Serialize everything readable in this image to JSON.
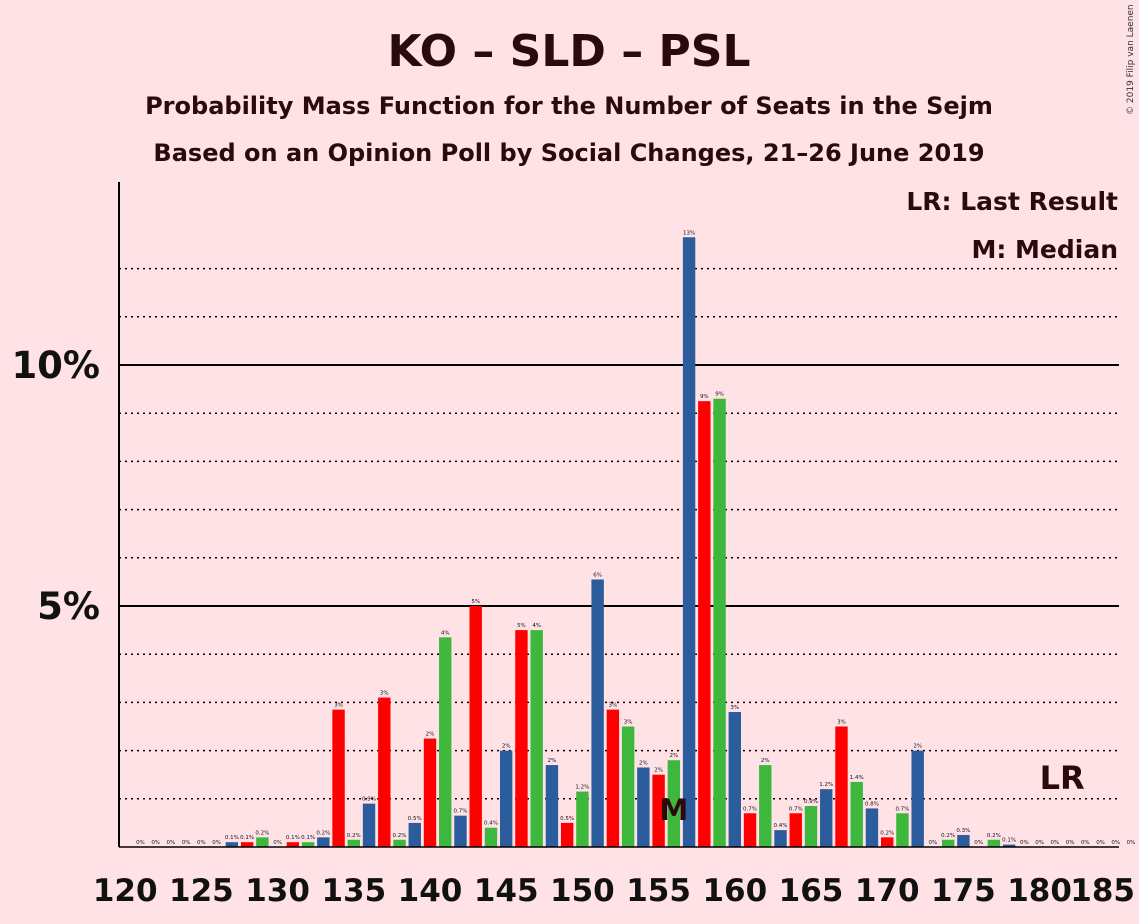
{
  "chart_data": {
    "type": "bar",
    "title": "KO – SLD – PSL",
    "subtitle": "Probability Mass Function for the Number of Seats in the Sejm",
    "subtitle2": "Based on an Opinion Poll by Social Changes, 21–26 June 2019",
    "copyright": "© 2019 Filip van Laenen",
    "legend": {
      "lr": "LR: Last Result",
      "m": "M: Median"
    },
    "marker_labels": {
      "median": "M",
      "last_result": "LR"
    },
    "median_seat": 156,
    "last_result_seat": 182,
    "xlim": [
      120,
      185
    ],
    "ylim": [
      0,
      13.7
    ],
    "x_ticks": [
      "120",
      "125",
      "130",
      "135",
      "140",
      "145",
      "150",
      "155",
      "160",
      "165",
      "170",
      "175",
      "180",
      "185"
    ],
    "y_ticks": [
      {
        "value": 5,
        "label": "5%"
      },
      {
        "value": 10,
        "label": "10%"
      }
    ],
    "grid": "dotted every 1%, solid at 5% and 10%",
    "colors": {
      "blue": "#2B5C9B",
      "red": "#FF0000",
      "green": "#3DB83D",
      "background": "#FFE2E6",
      "text": "#2a0a0a"
    },
    "series": [
      {
        "x": 121,
        "value": 0.0,
        "label": "0%",
        "color": "blue"
      },
      {
        "x": 122,
        "value": 0.0,
        "label": "0%",
        "color": "red"
      },
      {
        "x": 123,
        "value": 0.0,
        "label": "0%",
        "color": "green"
      },
      {
        "x": 124,
        "value": 0.0,
        "label": "0%",
        "color": "blue"
      },
      {
        "x": 125,
        "value": 0.0,
        "label": "0%",
        "color": "red"
      },
      {
        "x": 126,
        "value": 0.0,
        "label": "0%",
        "color": "green"
      },
      {
        "x": 127,
        "value": 0.1,
        "label": "0.1%",
        "color": "blue"
      },
      {
        "x": 128,
        "value": 0.1,
        "label": "0.1%",
        "color": "red"
      },
      {
        "x": 129,
        "value": 0.2,
        "label": "0.2%",
        "color": "green"
      },
      {
        "x": 130,
        "value": 0.0,
        "label": "0%",
        "color": "blue"
      },
      {
        "x": 131,
        "value": 0.1,
        "label": "0.1%",
        "color": "red"
      },
      {
        "x": 132,
        "value": 0.1,
        "label": "0.1%",
        "color": "green"
      },
      {
        "x": 133,
        "value": 0.2,
        "label": "0.2%",
        "color": "blue"
      },
      {
        "x": 134,
        "value": 2.85,
        "label": "3%",
        "color": "red"
      },
      {
        "x": 135,
        "value": 0.15,
        "label": "0.2%",
        "color": "green"
      },
      {
        "x": 136,
        "value": 0.9,
        "label": "0.9%",
        "color": "blue"
      },
      {
        "x": 137,
        "value": 3.1,
        "label": "3%",
        "color": "red"
      },
      {
        "x": 138,
        "value": 0.15,
        "label": "0.2%",
        "color": "green"
      },
      {
        "x": 139,
        "value": 0.5,
        "label": "0.5%",
        "color": "blue"
      },
      {
        "x": 140,
        "value": 2.25,
        "label": "2%",
        "color": "red"
      },
      {
        "x": 141,
        "value": 4.35,
        "label": "4%",
        "color": "green"
      },
      {
        "x": 142,
        "value": 0.65,
        "label": "0.7%",
        "color": "blue"
      },
      {
        "x": 143,
        "value": 5.0,
        "label": "5%",
        "color": "red"
      },
      {
        "x": 144,
        "value": 0.4,
        "label": "0.4%",
        "color": "green"
      },
      {
        "x": 145,
        "value": 2.0,
        "label": "2%",
        "color": "blue"
      },
      {
        "x": 146,
        "value": 4.5,
        "label": "5%",
        "color": "red"
      },
      {
        "x": 147,
        "value": 4.5,
        "label": "4%",
        "color": "green"
      },
      {
        "x": 148,
        "value": 1.7,
        "label": "2%",
        "color": "blue"
      },
      {
        "x": 149,
        "value": 0.5,
        "label": "0.5%",
        "color": "red"
      },
      {
        "x": 150,
        "value": 1.15,
        "label": "1.2%",
        "color": "green"
      },
      {
        "x": 151,
        "value": 5.55,
        "label": "6%",
        "color": "blue"
      },
      {
        "x": 152,
        "value": 2.85,
        "label": "3%",
        "color": "red"
      },
      {
        "x": 153,
        "value": 2.5,
        "label": "3%",
        "color": "green"
      },
      {
        "x": 154,
        "value": 1.65,
        "label": "2%",
        "color": "blue"
      },
      {
        "x": 155,
        "value": 1.5,
        "label": "2%",
        "color": "red"
      },
      {
        "x": 156,
        "value": 1.8,
        "label": "2%",
        "color": "green"
      },
      {
        "x": 157,
        "value": 12.65,
        "label": "13%",
        "color": "blue"
      },
      {
        "x": 158,
        "value": 9.25,
        "label": "9%",
        "color": "red"
      },
      {
        "x": 159,
        "value": 9.3,
        "label": "9%",
        "color": "green"
      },
      {
        "x": 160,
        "value": 2.8,
        "label": "3%",
        "color": "blue"
      },
      {
        "x": 161,
        "value": 0.7,
        "label": "0.7%",
        "color": "red"
      },
      {
        "x": 162,
        "value": 1.7,
        "label": "2%",
        "color": "green"
      },
      {
        "x": 163,
        "value": 0.35,
        "label": "0.4%",
        "color": "blue"
      },
      {
        "x": 164,
        "value": 0.7,
        "label": "0.7%",
        "color": "red"
      },
      {
        "x": 165,
        "value": 0.85,
        "label": "0.9%",
        "color": "green"
      },
      {
        "x": 166,
        "value": 1.2,
        "label": "1.2%",
        "color": "blue"
      },
      {
        "x": 167,
        "value": 2.5,
        "label": "3%",
        "color": "red"
      },
      {
        "x": 168,
        "value": 1.35,
        "label": "1.4%",
        "color": "green"
      },
      {
        "x": 169,
        "value": 0.8,
        "label": "0.8%",
        "color": "blue"
      },
      {
        "x": 170,
        "value": 0.2,
        "label": "0.2%",
        "color": "red"
      },
      {
        "x": 171,
        "value": 0.7,
        "label": "0.7%",
        "color": "green"
      },
      {
        "x": 172,
        "value": 2.0,
        "label": "2%",
        "color": "blue"
      },
      {
        "x": 173,
        "value": 0.0,
        "label": "0%",
        "color": "red"
      },
      {
        "x": 174,
        "value": 0.15,
        "label": "0.2%",
        "color": "green"
      },
      {
        "x": 175,
        "value": 0.25,
        "label": "0.3%",
        "color": "blue"
      },
      {
        "x": 176,
        "value": 0.0,
        "label": "0%",
        "color": "red"
      },
      {
        "x": 177,
        "value": 0.15,
        "label": "0.2%",
        "color": "green"
      },
      {
        "x": 178,
        "value": 0.05,
        "label": "0.1%",
        "color": "blue"
      },
      {
        "x": 179,
        "value": 0.0,
        "label": "0%",
        "color": "red"
      },
      {
        "x": 180,
        "value": 0.0,
        "label": "0%",
        "color": "green"
      },
      {
        "x": 181,
        "value": 0.0,
        "label": "0%",
        "color": "blue"
      },
      {
        "x": 182,
        "value": 0.0,
        "label": "0%",
        "color": "red"
      },
      {
        "x": 183,
        "value": 0.0,
        "label": "0%",
        "color": "green"
      },
      {
        "x": 184,
        "value": 0.0,
        "label": "0%",
        "color": "blue"
      },
      {
        "x": 185,
        "value": 0.0,
        "label": "0%",
        "color": "red"
      },
      {
        "x": 186,
        "value": 0.0,
        "label": "0%",
        "color": "green"
      }
    ]
  }
}
